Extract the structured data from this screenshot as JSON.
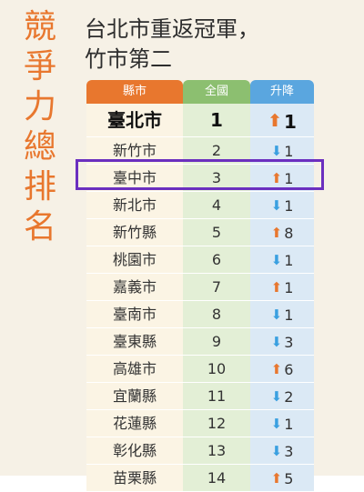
{
  "vertical_title": "競爭力總排名",
  "headline_line1": "台北市重返冠軍，",
  "headline_line2": "竹市第二",
  "headers": {
    "county": "縣市",
    "national": "全國",
    "change": "升降"
  },
  "colors": {
    "orange": "#e8772e",
    "green": "#8cbf70",
    "blue": "#5aa6df",
    "highlight": "#6b2fbf"
  },
  "rows": [
    {
      "county": "臺北市",
      "rank": "1",
      "dir": "up",
      "change": "1"
    },
    {
      "county": "新竹市",
      "rank": "2",
      "dir": "down",
      "change": "1"
    },
    {
      "county": "臺中市",
      "rank": "3",
      "dir": "up",
      "change": "1"
    },
    {
      "county": "新北市",
      "rank": "4",
      "dir": "down",
      "change": "1"
    },
    {
      "county": "新竹縣",
      "rank": "5",
      "dir": "up",
      "change": "8"
    },
    {
      "county": "桃園市",
      "rank": "6",
      "dir": "down",
      "change": "1"
    },
    {
      "county": "嘉義市",
      "rank": "7",
      "dir": "up",
      "change": "1"
    },
    {
      "county": "臺南市",
      "rank": "8",
      "dir": "down",
      "change": "1"
    },
    {
      "county": "臺東縣",
      "rank": "9",
      "dir": "down",
      "change": "3"
    },
    {
      "county": "高雄市",
      "rank": "10",
      "dir": "up",
      "change": "6"
    },
    {
      "county": "宜蘭縣",
      "rank": "11",
      "dir": "down",
      "change": "2"
    },
    {
      "county": "花蓮縣",
      "rank": "12",
      "dir": "down",
      "change": "1"
    },
    {
      "county": "彰化縣",
      "rank": "13",
      "dir": "down",
      "change": "3"
    },
    {
      "county": "苗栗縣",
      "rank": "14",
      "dir": "up",
      "change": "5"
    }
  ]
}
